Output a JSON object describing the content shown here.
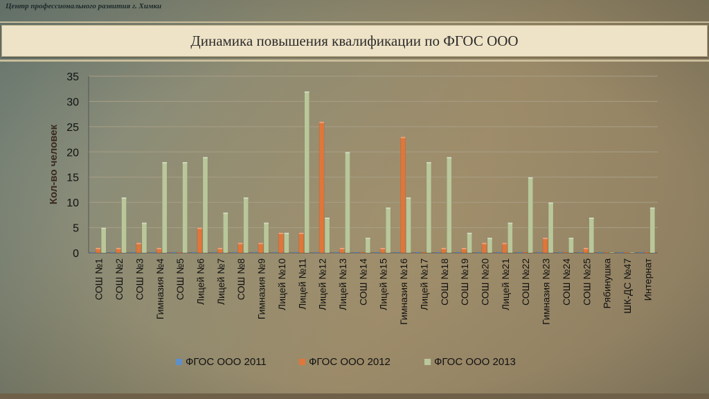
{
  "header": {
    "org_name": "Центр профессионального развития г. Химки",
    "slide_title": "Динамика повышения квалификации по ФГОС ООО"
  },
  "colors": {
    "series_2011": "#5f8fc9",
    "series_2012": "#e0763a",
    "series_2013": "#b9c79a",
    "title_bar_bg": "#efe3c7"
  },
  "chart_data": {
    "type": "bar",
    "title": "",
    "xlabel": "",
    "ylabel": "Кол-во человек",
    "ylim": [
      0,
      35
    ],
    "yticks": [
      0,
      5,
      10,
      15,
      20,
      25,
      30,
      35
    ],
    "grid": true,
    "legend_position": "bottom",
    "categories": [
      "СОШ №1",
      "СОШ №2",
      "СОШ №3",
      "Гимназия №4",
      "СОШ №5",
      "Лицей №6",
      "Лицей №7",
      "СОШ №8",
      "Гимназия №9",
      "Лицей №10",
      "Лицей №11",
      "Лицей №12",
      "Лицей №13",
      "СОШ №14",
      "Лицей №15",
      "Гимназия №16",
      "Лицей №17",
      "СОШ №18",
      "СОШ №19",
      "СОШ №20",
      "Лицей №21",
      "СОШ №22",
      "Гимназия №23",
      "СОШ №24",
      "СОШ №25",
      "Рябинушка",
      "ШК-ДС №47",
      "Интернат"
    ],
    "series": [
      {
        "name": "ФГОС ООО 2011",
        "color": "#5f8fc9",
        "values": [
          0,
          0,
          0,
          0,
          0,
          0,
          0,
          0,
          0,
          0,
          0,
          0,
          0,
          0,
          0,
          0,
          0,
          0,
          0,
          0,
          0,
          0,
          0,
          0,
          0,
          0,
          0,
          0
        ]
      },
      {
        "name": "ФГОС ООО 2012",
        "color": "#e0763a",
        "values": [
          1,
          1,
          2,
          1,
          0,
          5,
          1,
          2,
          2,
          4,
          4,
          26,
          1,
          0,
          1,
          23,
          0,
          1,
          1,
          2,
          2,
          0,
          3,
          0,
          1,
          0,
          0,
          0
        ]
      },
      {
        "name": "ФГОС ООО 2013",
        "color": "#b9c79a",
        "values": [
          5,
          11,
          6,
          18,
          18,
          19,
          8,
          11,
          6,
          4,
          32,
          7,
          20,
          3,
          9,
          11,
          18,
          19,
          4,
          3,
          6,
          15,
          10,
          3,
          7,
          0,
          0,
          9
        ]
      }
    ]
  }
}
